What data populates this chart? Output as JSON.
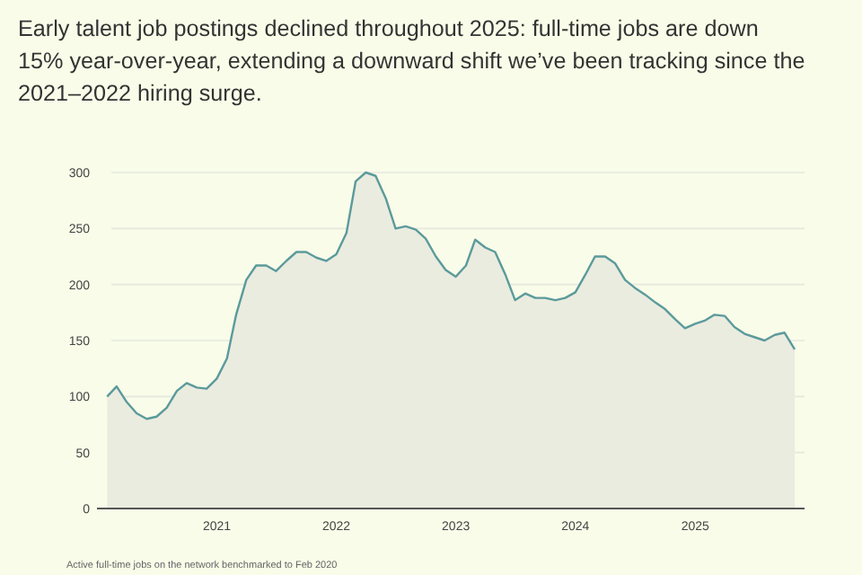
{
  "chart_data": {
    "type": "area",
    "title": "Early talent job postings declined throughout 2025: full-time jobs are down 15% year-over-year, extending a downward shift we’ve been tracking since the 2021–2022 hiring surge.",
    "x": [
      "2020-02",
      "2020-03",
      "2020-04",
      "2020-05",
      "2020-06",
      "2020-07",
      "2020-08",
      "2020-09",
      "2020-10",
      "2020-11",
      "2020-12",
      "2021-01",
      "2021-02",
      "2021-03",
      "2021-04",
      "2021-05",
      "2021-06",
      "2021-07",
      "2021-08",
      "2021-09",
      "2021-10",
      "2021-11",
      "2021-12",
      "2022-01",
      "2022-02",
      "2022-03",
      "2022-04",
      "2022-05",
      "2022-06",
      "2022-07",
      "2022-08",
      "2022-09",
      "2022-10",
      "2022-11",
      "2022-12",
      "2023-01",
      "2023-02",
      "2023-03",
      "2023-04",
      "2023-05",
      "2023-06",
      "2023-07",
      "2023-08",
      "2023-09",
      "2023-10",
      "2023-11",
      "2023-12",
      "2024-01",
      "2024-02",
      "2024-03",
      "2024-04",
      "2024-05",
      "2024-06",
      "2024-07",
      "2024-08",
      "2024-09",
      "2024-10",
      "2024-11",
      "2024-12",
      "2025-01",
      "2025-02",
      "2025-03",
      "2025-04",
      "2025-05",
      "2025-06",
      "2025-07",
      "2025-08",
      "2025-09",
      "2025-10",
      "2025-11"
    ],
    "series": [
      {
        "color": "#5b9a9c",
        "values": [
          100,
          109,
          95,
          85,
          80,
          82,
          90,
          105,
          112,
          108,
          107,
          116,
          134,
          173,
          204,
          217,
          217,
          212,
          221,
          229,
          229,
          224,
          221,
          227,
          246,
          292,
          300,
          297,
          277,
          250,
          252,
          249,
          241,
          225,
          213,
          207,
          217,
          240,
          233,
          229,
          209,
          186,
          192,
          188,
          188,
          186,
          188,
          193,
          209,
          225,
          225,
          219,
          204,
          197,
          191,
          184,
          178,
          169,
          161,
          165,
          168,
          173,
          172,
          162,
          156,
          153,
          150,
          155,
          157,
          142
        ]
      }
    ],
    "xlim": [
      "2020-01",
      "2025-12"
    ],
    "xticks": [
      {
        "value": "2021-01",
        "label": "2021"
      },
      {
        "value": "2022-01",
        "label": "2022"
      },
      {
        "value": "2023-01",
        "label": "2023"
      },
      {
        "value": "2024-01",
        "label": "2024"
      },
      {
        "value": "2025-01",
        "label": "2025"
      }
    ],
    "ylim": [
      0,
      300
    ],
    "yticks": [
      0,
      50,
      100,
      150,
      200,
      250,
      300
    ],
    "grid": "y",
    "annotations": [
      "Active full-time jobs on the network benchmarked to Feb 2020"
    ]
  }
}
